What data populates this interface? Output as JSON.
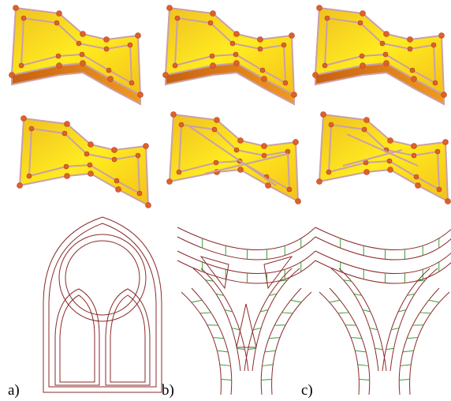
{
  "labels": {
    "a": "a)",
    "b": "b)",
    "c": "c)"
  }
}
